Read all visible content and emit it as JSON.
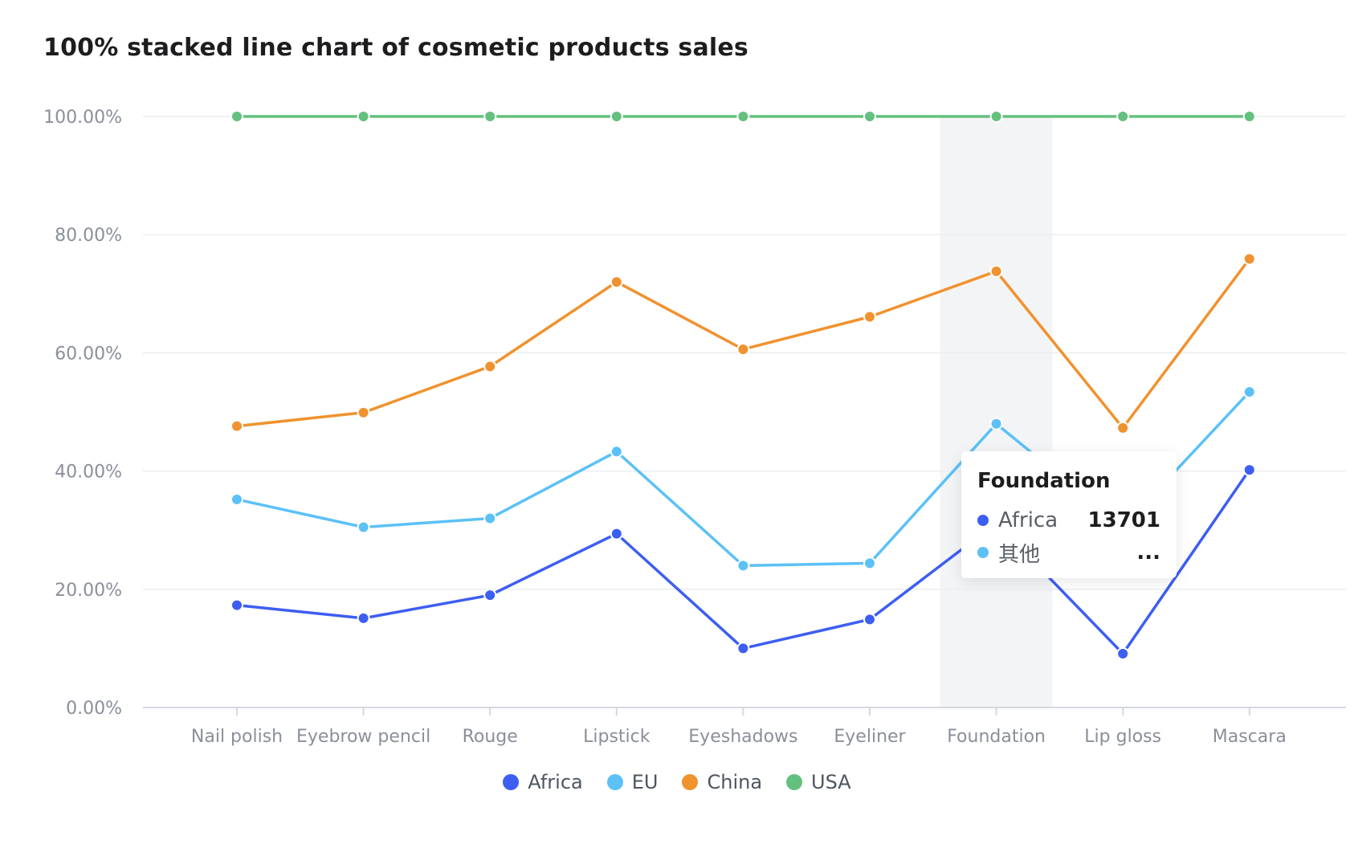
{
  "chart_data": {
    "type": "line",
    "title": "100% stacked line chart of cosmetic products sales",
    "categories": [
      "Nail polish",
      "Eyebrow pencil",
      "Rouge",
      "Lipstick",
      "Eyeshadows",
      "Eyeliner",
      "Foundation",
      "Lip gloss",
      "Mascara"
    ],
    "y_ticks": [
      "0.00%",
      "20.00%",
      "40.00%",
      "60.00%",
      "80.00%",
      "100.00%"
    ],
    "ylim": [
      0,
      100
    ],
    "stacked": "percent",
    "grid": true,
    "legend_position": "bottom",
    "series": [
      {
        "name": "Africa",
        "color": "#3d5ef2",
        "cumulative_percent": [
          17.3,
          15.1,
          19.0,
          29.4,
          10.0,
          14.9,
          31.2,
          9.1,
          40.2
        ]
      },
      {
        "name": "EU",
        "color": "#5cc1f7",
        "cumulative_percent": [
          35.2,
          30.5,
          32.0,
          43.3,
          24.0,
          24.4,
          48.0,
          30.5,
          53.4
        ]
      },
      {
        "name": "China",
        "color": "#f0922e",
        "cumulative_percent": [
          47.6,
          49.9,
          57.7,
          72.0,
          60.6,
          66.1,
          73.8,
          47.3,
          75.9
        ]
      },
      {
        "name": "USA",
        "color": "#64c07e",
        "cumulative_percent": [
          100,
          100,
          100,
          100,
          100,
          100,
          100,
          100,
          100
        ]
      }
    ],
    "highlighted_category": "Foundation",
    "tooltip": {
      "title": "Foundation",
      "rows": [
        {
          "label": "Africa",
          "value": "13701",
          "color": "#3d5ef2"
        },
        {
          "label": "其他",
          "value": "...",
          "color": "#5cc1f7"
        }
      ]
    }
  }
}
